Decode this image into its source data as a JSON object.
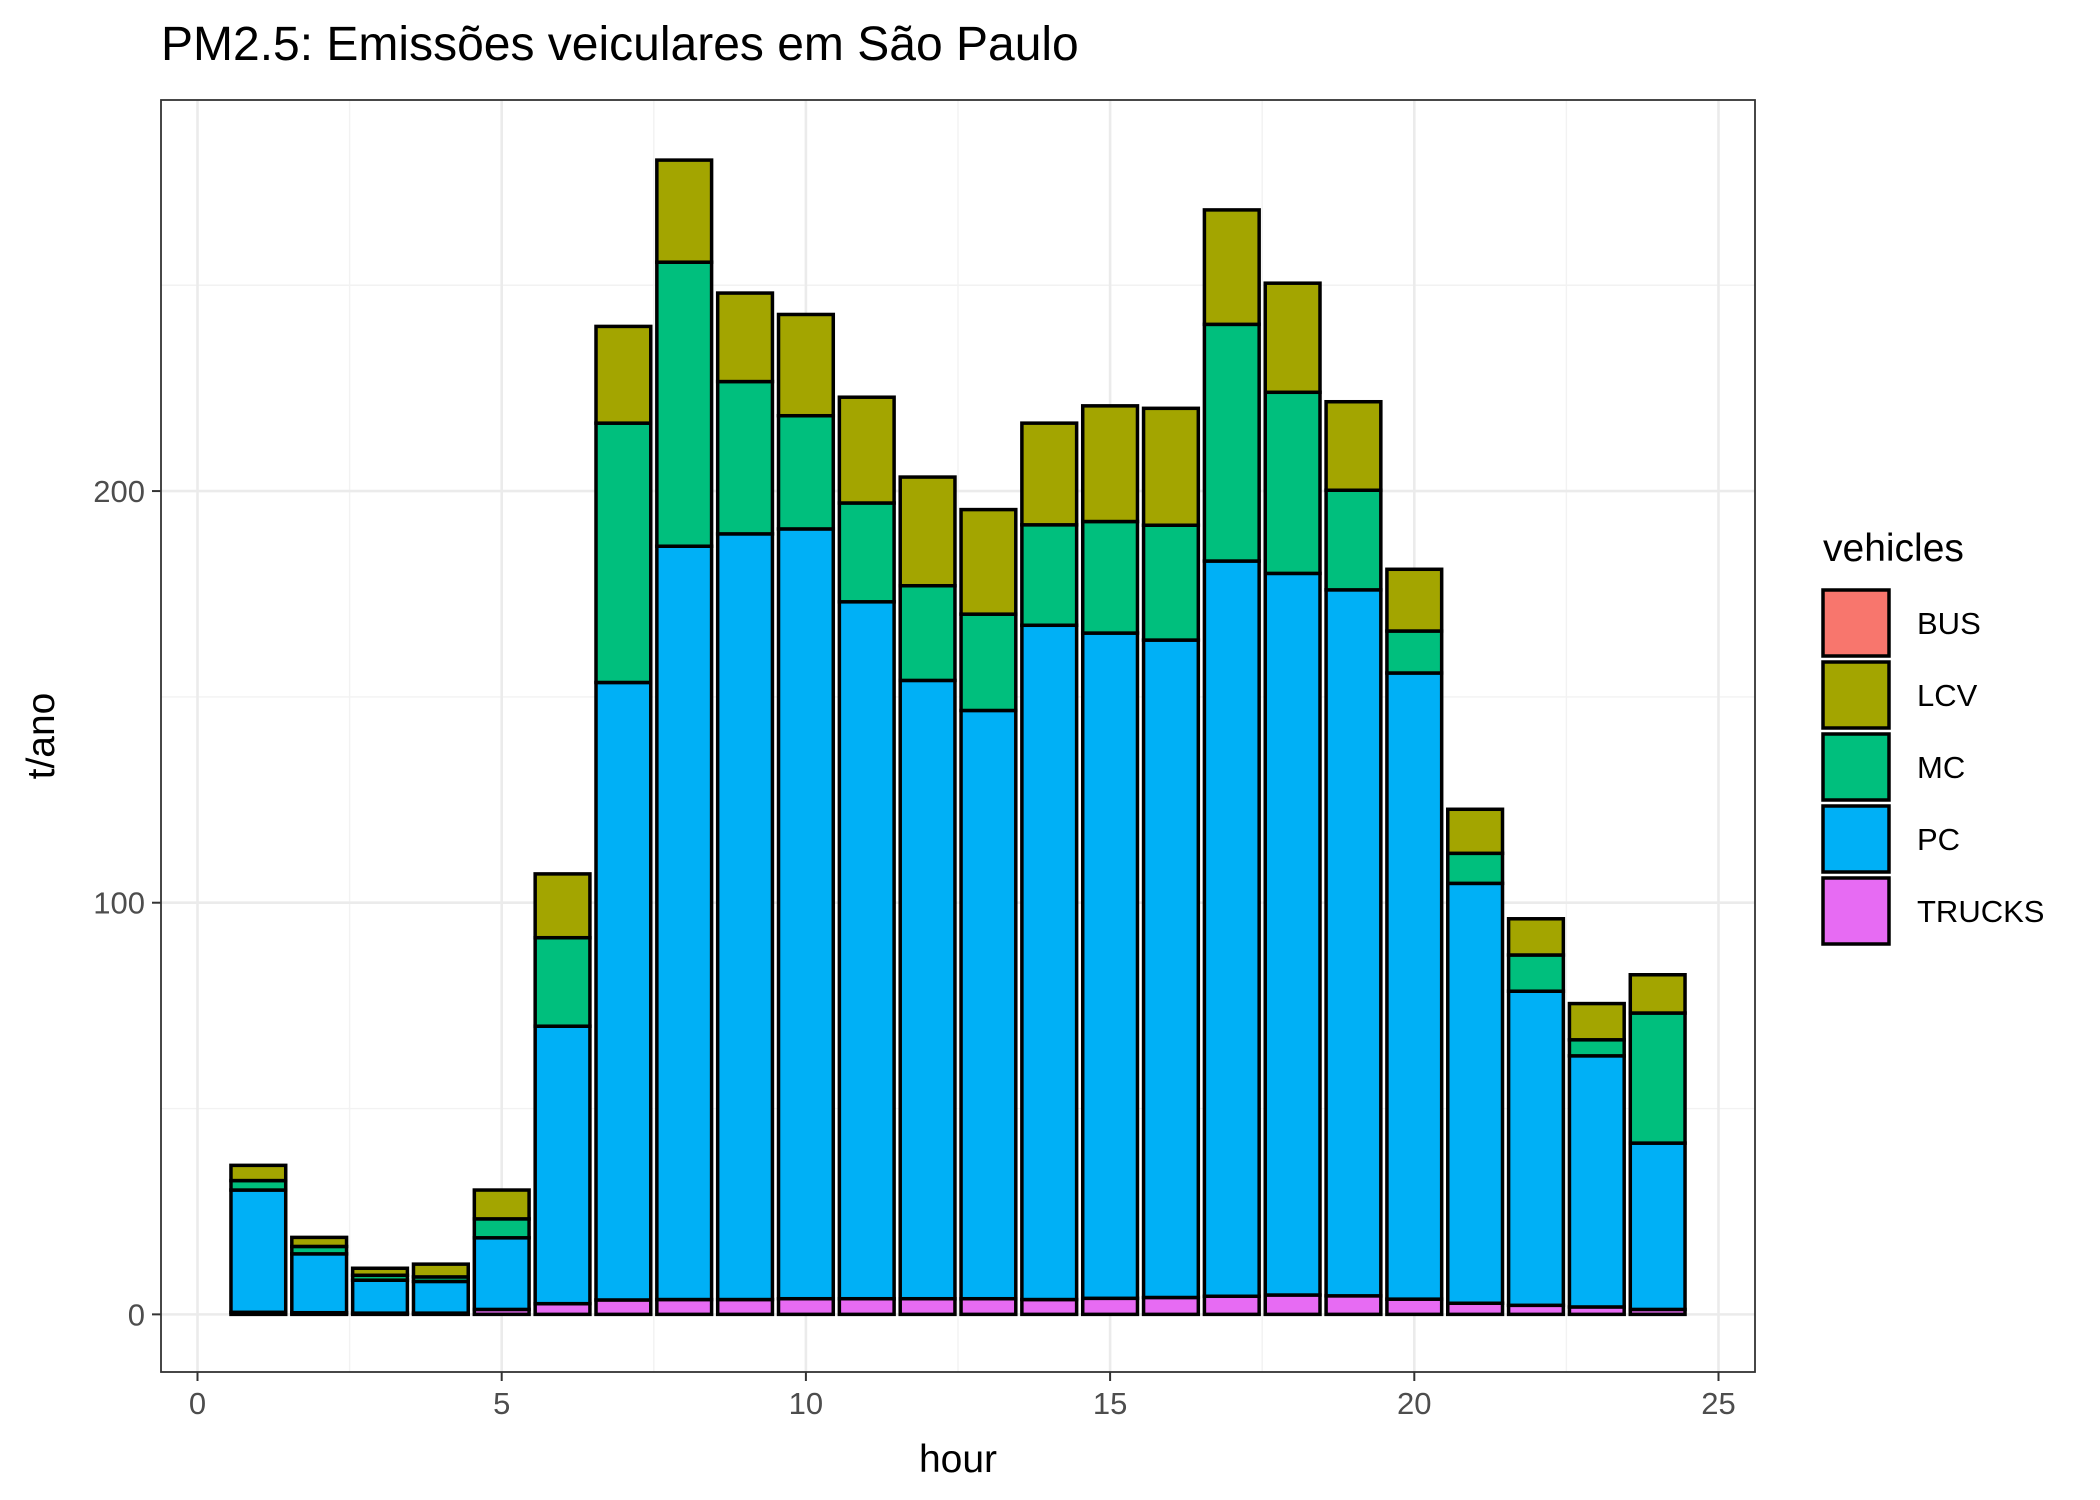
{
  "chart_data": {
    "type": "bar",
    "stacked": true,
    "title": "PM2.5: Emissões veiculares em São Paulo",
    "xlabel": "hour",
    "ylabel": "t/ano",
    "xlim": [
      -0.6,
      25.6
    ],
    "ylim": [
      -14,
      295
    ],
    "x_ticks": [
      0,
      5,
      10,
      15,
      20,
      25
    ],
    "y_ticks": [
      0,
      100,
      200
    ],
    "grid": true,
    "legend": {
      "title": "vehicles",
      "position": "right",
      "entries": [
        "BUS",
        "LCV",
        "MC",
        "PC",
        "TRUCKS"
      ]
    },
    "x": [
      1,
      2,
      3,
      4,
      5,
      6,
      7,
      8,
      9,
      10,
      11,
      12,
      13,
      14,
      15,
      16,
      17,
      18,
      19,
      20,
      21,
      22,
      23,
      24
    ],
    "series": [
      {
        "name": "TRUCKS",
        "color": "#E76BF3",
        "values": [
          0.5,
          0.4,
          0.3,
          0.3,
          1.2,
          2.6,
          3.5,
          3.6,
          3.6,
          3.8,
          3.8,
          3.8,
          3.8,
          3.6,
          3.9,
          4.1,
          4.4,
          4.7,
          4.5,
          3.7,
          2.7,
          2.2,
          1.8,
          1.2
        ]
      },
      {
        "name": "PC",
        "color": "#00B0F6",
        "values": [
          29.7,
          14.3,
          8.0,
          7.7,
          17.4,
          67.4,
          150.0,
          183.0,
          186.0,
          187.0,
          169.3,
          150.2,
          142.9,
          163.8,
          161.6,
          159.7,
          178.6,
          175.3,
          171.5,
          152.1,
          102.0,
          76.3,
          61.0,
          40.4
        ]
      },
      {
        "name": "MC",
        "color": "#00BF7D",
        "values": [
          2.3,
          1.8,
          1.2,
          1.1,
          4.6,
          21.5,
          63.0,
          69.0,
          37.0,
          27.5,
          24.0,
          23.0,
          23.4,
          24.4,
          27.1,
          27.9,
          57.5,
          44.0,
          24.2,
          10.2,
          7.3,
          8.8,
          3.9,
          31.6
        ]
      },
      {
        "name": "LCV",
        "color": "#A3A500",
        "values": [
          3.7,
          2.2,
          1.7,
          3.1,
          7.0,
          15.5,
          23.5,
          24.8,
          21.5,
          24.6,
          25.7,
          26.4,
          25.4,
          24.7,
          28.1,
          28.4,
          27.8,
          26.5,
          21.5,
          15.0,
          10.7,
          8.8,
          8.8,
          9.3
        ]
      },
      {
        "name": "BUS",
        "color": "#F8766D",
        "values": [
          0,
          0,
          0,
          0,
          0,
          0,
          0,
          0,
          0,
          0,
          0,
          0,
          0,
          0,
          0,
          0,
          0,
          0,
          0,
          0,
          0,
          0,
          0,
          0
        ]
      }
    ]
  }
}
